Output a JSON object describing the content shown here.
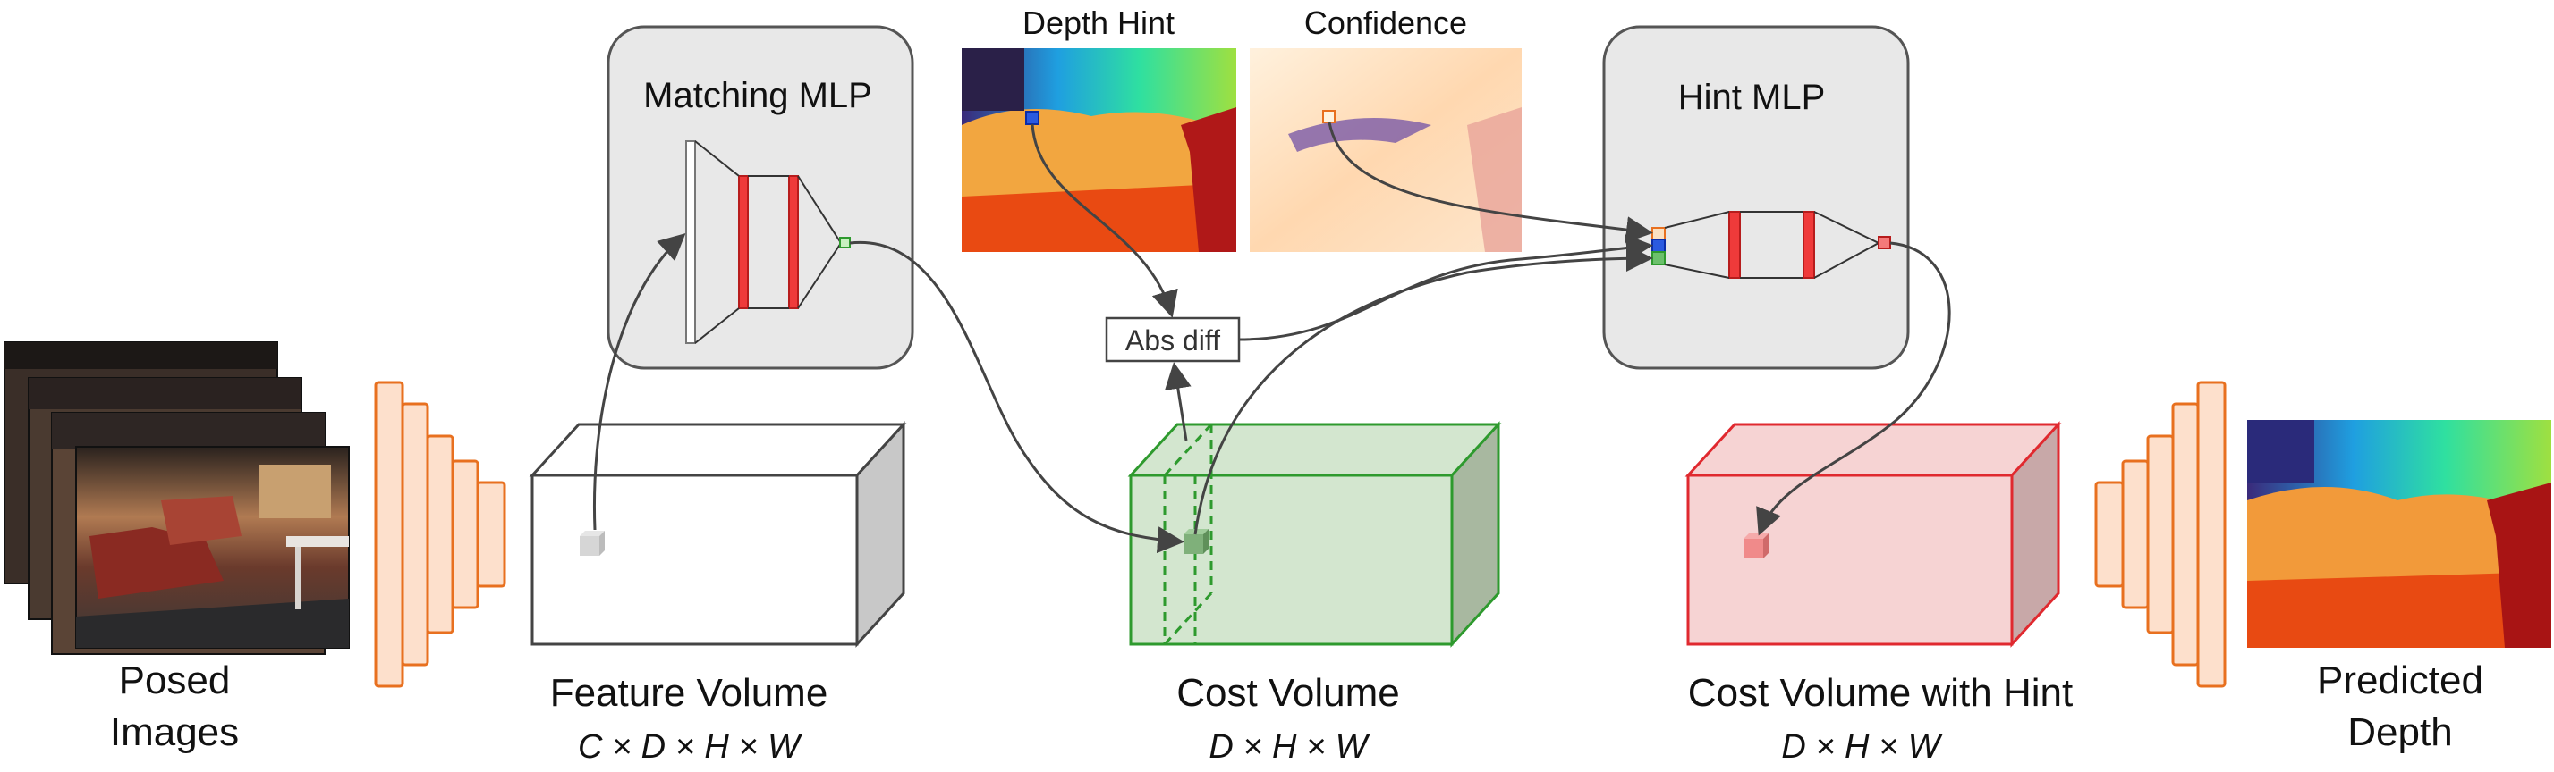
{
  "labels": {
    "posed_images": [
      "Posed",
      "Images"
    ],
    "feature_volume": "Feature Volume",
    "feature_volume_dims": "C × D × H × W",
    "cost_volume": "Cost Volume",
    "cost_volume_dims": "D × H × W",
    "cost_volume_hint": "Cost Volume with Hint",
    "cost_volume_hint_dims": "D × H × W",
    "predicted_depth": [
      "Predicted",
      "Depth"
    ],
    "matching_mlp": "Matching MLP",
    "hint_mlp": "Hint MLP",
    "depth_hint": "Depth Hint",
    "confidence": "Confidence",
    "abs_diff": "Abs diff"
  },
  "colors": {
    "encoder_fill": "#fde0cc",
    "encoder_stroke": "#e8701f",
    "mlp_panel": "#e8e8e8",
    "cost_green": "#2e9a2e",
    "cost_green_fill": "#d3e6cf",
    "hint_red": "#e0292f",
    "hint_red_fill": "#f6d3d3",
    "arrow": "#444444"
  }
}
